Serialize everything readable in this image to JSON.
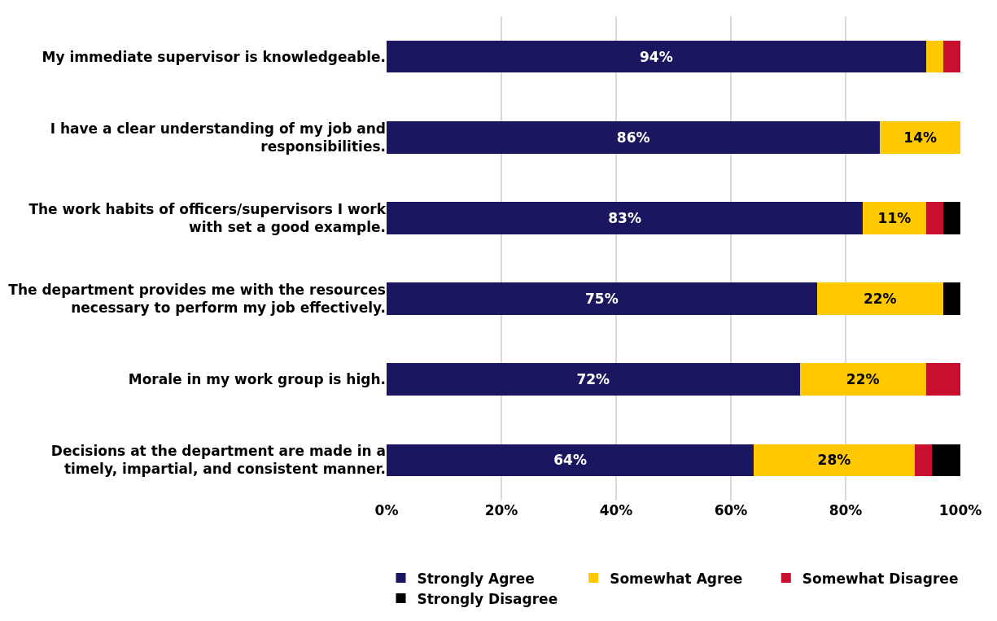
{
  "chart_data": {
    "type": "bar",
    "orientation": "horizontal",
    "stacked": true,
    "categories": [
      "My immediate supervisor is knowledgeable.",
      "I have a clear understanding of my job and responsibilities.",
      "The work habits of officers/supervisors I work with set a good example.",
      "The department provides me with the resources necessary to perform my job effectively.",
      "Morale in my work group is high.",
      "Decisions at the department are made in a timely, impartial, and consistent manner."
    ],
    "series": [
      {
        "name": "Strongly Agree",
        "color": "#1a1760",
        "values": [
          94,
          86,
          83,
          75,
          72,
          64
        ],
        "value_labels": [
          "94%",
          "86%",
          "83%",
          "75%",
          "72%",
          "64%"
        ]
      },
      {
        "name": "Somewhat Agree",
        "color": "#ffc800",
        "values": [
          3,
          14,
          11,
          22,
          22,
          28
        ],
        "value_labels": [
          null,
          "14%",
          "11%",
          "22%",
          "22%",
          "28%"
        ]
      },
      {
        "name": "Somewhat Disagree",
        "color": "#c8102e",
        "values": [
          3,
          0,
          3,
          0,
          6,
          3
        ],
        "value_labels": [
          null,
          null,
          null,
          null,
          null,
          null
        ]
      },
      {
        "name": "Strongly Disagree",
        "color": "#000000",
        "values": [
          0,
          0,
          3,
          3,
          0,
          5
        ],
        "value_labels": [
          null,
          null,
          null,
          null,
          null,
          null
        ]
      }
    ],
    "xlim": [
      0,
      100
    ],
    "xticks": [
      {
        "value": 0,
        "label": "0%"
      },
      {
        "value": 20,
        "label": "20%"
      },
      {
        "value": 40,
        "label": "40%"
      },
      {
        "value": 60,
        "label": "60%"
      },
      {
        "value": 80,
        "label": "80%"
      },
      {
        "value": 100,
        "label": "100%"
      }
    ],
    "grid": "x",
    "legend": "bottom"
  }
}
